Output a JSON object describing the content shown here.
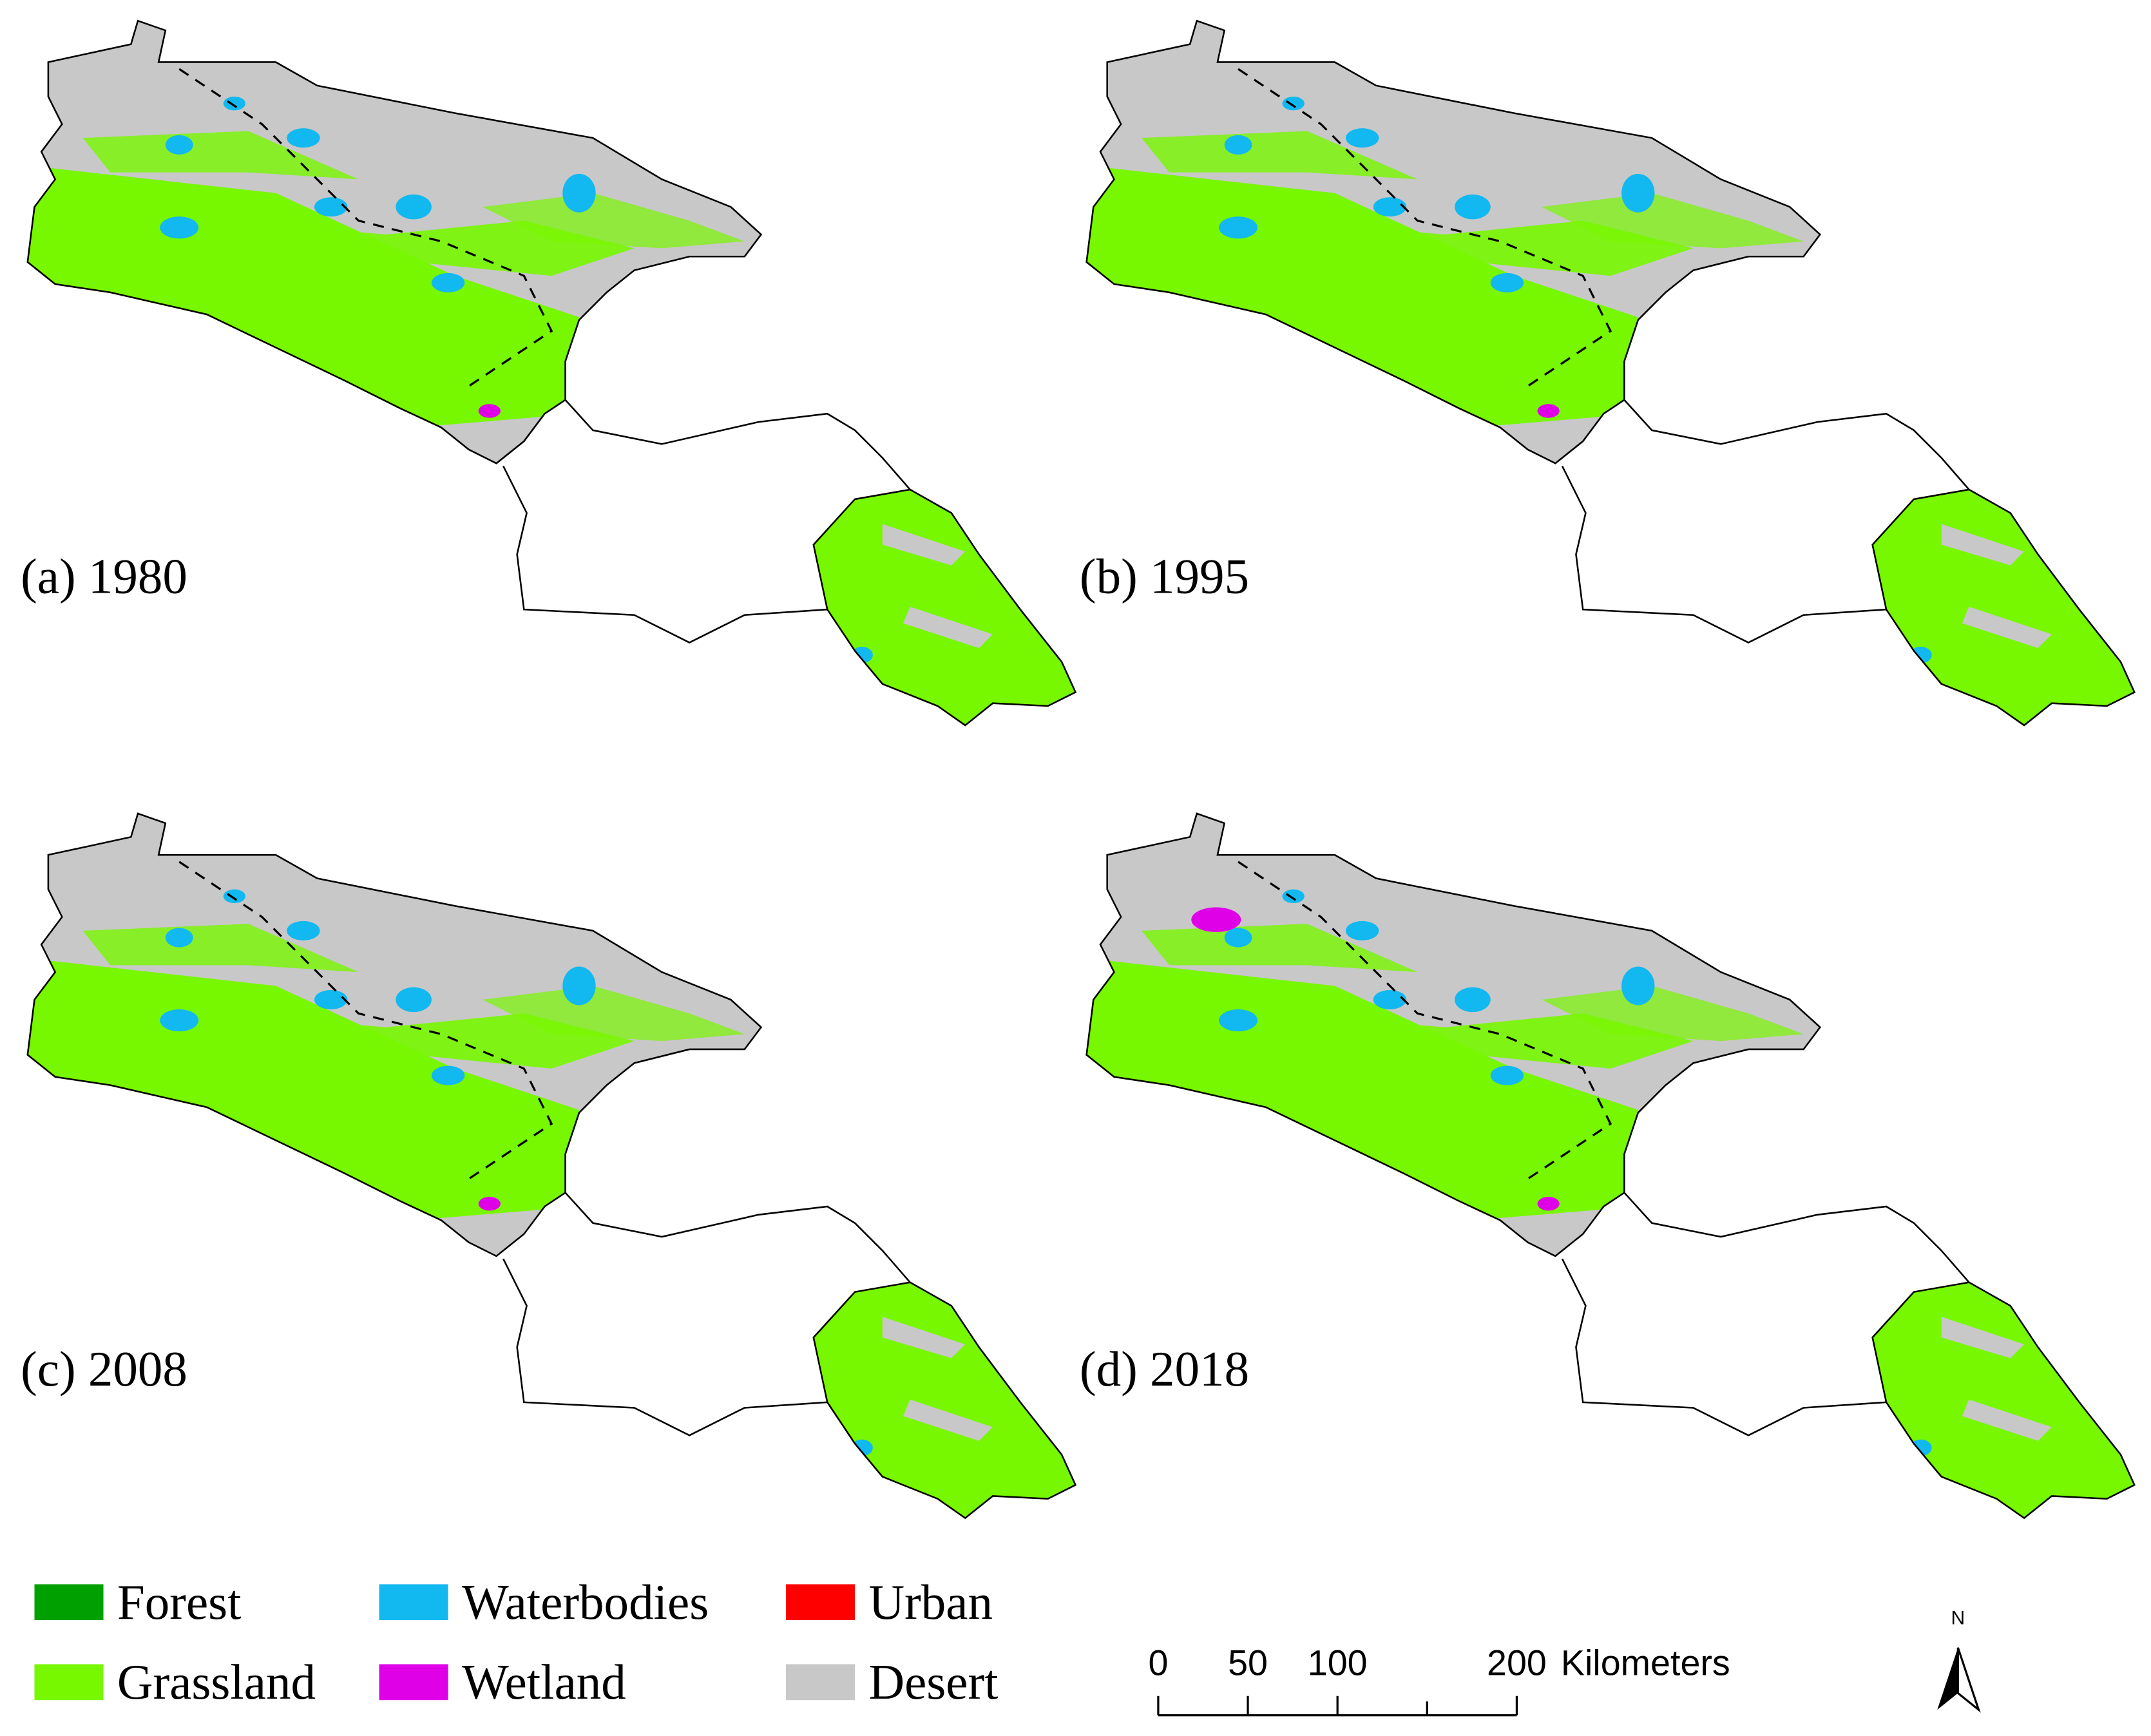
{
  "panels": [
    {
      "label": "(a) 1980"
    },
    {
      "label": "(b) 1995"
    },
    {
      "label": "(c) 2008"
    },
    {
      "label": "(d) 2018"
    }
  ],
  "legend": [
    {
      "label": "Forest",
      "color": "#00a000"
    },
    {
      "label": "Grassland",
      "color": "#77f700"
    },
    {
      "label": "Waterbodies",
      "color": "#12b8f0"
    },
    {
      "label": "Wetland",
      "color": "#e000e8"
    },
    {
      "label": "Urban",
      "color": "#ff0000"
    },
    {
      "label": "Desert",
      "color": "#c8c8c8"
    }
  ],
  "scale_bar": {
    "ticks": [
      0,
      50,
      100,
      200
    ],
    "unit": "Kilometers"
  },
  "north_arrow": "N"
}
